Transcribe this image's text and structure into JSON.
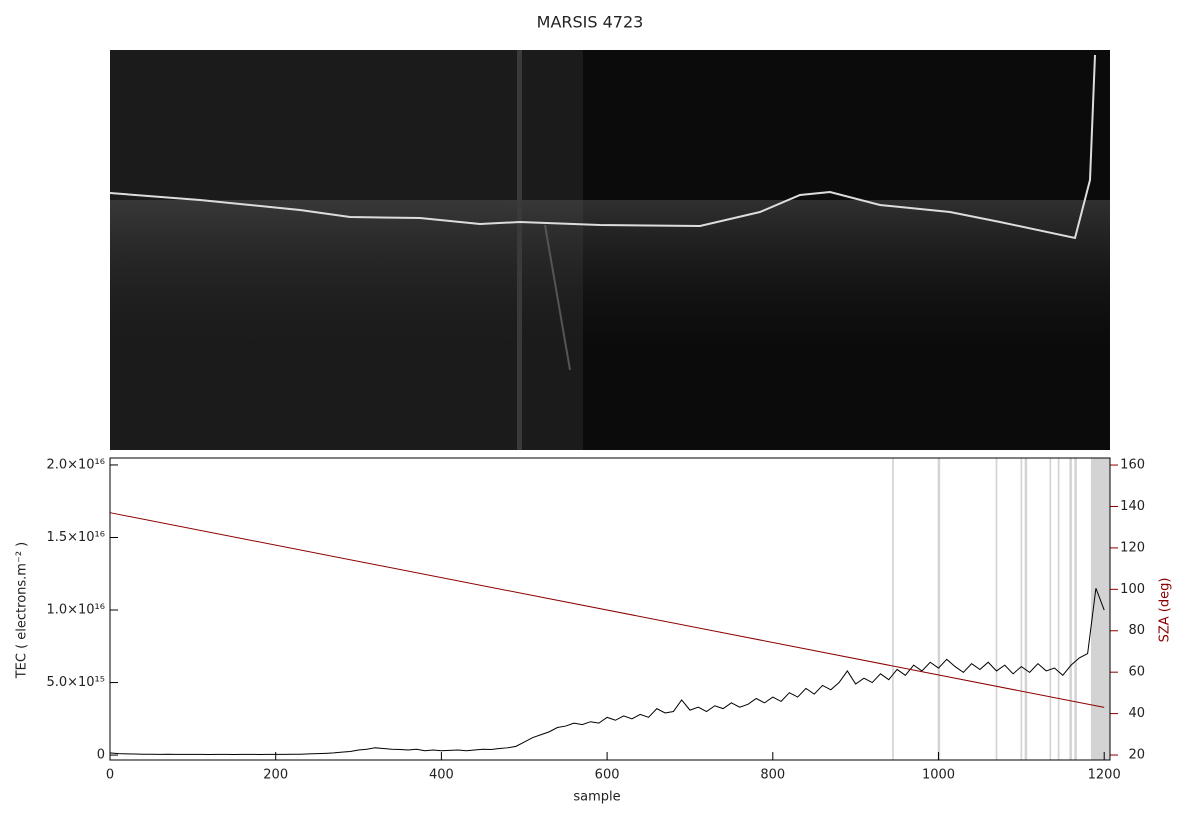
{
  "chart_data": {
    "type": "line",
    "title": "MARSIS 4723",
    "xlabel": "sample",
    "ylabel": "TEC ( electrons.m⁻² )",
    "y2label": "SZA (deg)",
    "xlim": [
      0,
      1207
    ],
    "xticks": [
      0,
      200,
      400,
      600,
      800,
      1000,
      1200
    ],
    "ylim": [
      -340000000000000.0,
      2.048e+16
    ],
    "yticks": [
      0,
      {
        "value": 5000000000000000.0,
        "label": "5.0×10¹⁵"
      },
      {
        "value": 1e+16,
        "label": "1.0×10¹⁶"
      },
      {
        "value": 1.5e+16,
        "label": "1.5×10¹⁶"
      },
      {
        "value": 2e+16,
        "label": "2.0×10¹⁶"
      }
    ],
    "y2lim": [
      17.6,
      163.4
    ],
    "y2ticks": [
      20,
      40,
      60,
      80,
      100,
      120,
      140,
      160
    ],
    "gray_bands": [
      [
        944,
        946
      ],
      [
        999,
        1002
      ],
      [
        1069,
        1071
      ],
      [
        1099,
        1101
      ],
      [
        1104,
        1107
      ],
      [
        1134,
        1136
      ],
      [
        1144,
        1146
      ],
      [
        1158,
        1161
      ],
      [
        1164,
        1167
      ],
      [
        1184,
        1207
      ]
    ],
    "band_color": "#d3d3d3",
    "series": [
      {
        "color": "#000000",
        "x": [
          0,
          10,
          20,
          30,
          40,
          50,
          60,
          70,
          80,
          90,
          100,
          110,
          120,
          130,
          140,
          150,
          160,
          170,
          180,
          190,
          200,
          210,
          220,
          230,
          240,
          250,
          260,
          270,
          280,
          290,
          300,
          310,
          320,
          330,
          340,
          350,
          360,
          370,
          380,
          390,
          400,
          410,
          420,
          430,
          440,
          450,
          460,
          470,
          480,
          490,
          500,
          510,
          520,
          530,
          540,
          550,
          560,
          570,
          580,
          590,
          600,
          610,
          620,
          630,
          640,
          650,
          660,
          670,
          680,
          690,
          700,
          710,
          720,
          730,
          740,
          750,
          760,
          770,
          780,
          790,
          800,
          810,
          820,
          830,
          840,
          850,
          860,
          870,
          880,
          890,
          900,
          910,
          920,
          930,
          940,
          950,
          960,
          970,
          980,
          990,
          1000,
          1010,
          1020,
          1030,
          1040,
          1050,
          1060,
          1070,
          1080,
          1090,
          1100,
          1110,
          1120,
          1130,
          1140,
          1150,
          1160,
          1170,
          1180,
          1190,
          1200
        ],
        "values": [
          150000000000000.0,
          100000000000000.0,
          80000000000000.0,
          70000000000000.0,
          60000000000000.0,
          60000000000000.0,
          50000000000000.0,
          60000000000000.0,
          50000000000000.0,
          50000000000000.0,
          50000000000000.0,
          50000000000000.0,
          40000000000000.0,
          50000000000000.0,
          50000000000000.0,
          40000000000000.0,
          50000000000000.0,
          50000000000000.0,
          40000000000000.0,
          50000000000000.0,
          50000000000000.0,
          50000000000000.0,
          60000000000000.0,
          60000000000000.0,
          80000000000000.0,
          100000000000000.0,
          120000000000000.0,
          150000000000000.0,
          200000000000000.0,
          250000000000000.0,
          350000000000000.0,
          400000000000000.0,
          500000000000000.0,
          450000000000000.0,
          400000000000000.0,
          380000000000000.0,
          350000000000000.0,
          400000000000000.0,
          300000000000000.0,
          350000000000000.0,
          300000000000000.0,
          320000000000000.0,
          350000000000000.0,
          300000000000000.0,
          350000000000000.0,
          400000000000000.0,
          380000000000000.0,
          450000000000000.0,
          500000000000000.0,
          600000000000000.0,
          900000000000000.0,
          1200000000000000.0,
          1400000000000000.0,
          1600000000000000.0,
          1900000000000000.0,
          2000000000000000.0,
          2200000000000000.0,
          2100000000000000.0,
          2300000000000000.0,
          2200000000000000.0,
          2600000000000000.0,
          2400000000000000.0,
          2700000000000000.0,
          2500000000000000.0,
          2800000000000000.0,
          2600000000000000.0,
          3200000000000000.0,
          2900000000000000.0,
          3000000000000000.0,
          3800000000000000.0,
          3100000000000000.0,
          3300000000000000.0,
          3000000000000000.0,
          3400000000000000.0,
          3200000000000000.0,
          3600000000000000.0,
          3300000000000000.0,
          3500000000000000.0,
          3900000000000000.0,
          3600000000000000.0,
          4000000000000000.0,
          3700000000000000.0,
          4300000000000000.0,
          4000000000000000.0,
          4600000000000000.0,
          4200000000000000.0,
          4800000000000000.0,
          4500000000000000.0,
          5000000000000000.0,
          5800000000000000.0,
          4900000000000000.0,
          5300000000000000.0,
          5000000000000000.0,
          5600000000000000.0,
          5200000000000000.0,
          5900000000000000.0,
          5500000000000000.0,
          6200000000000000.0,
          5800000000000000.0,
          6400000000000000.0,
          6000000000000000.0,
          6600000000000000.0,
          6100000000000000.0,
          5700000000000000.0,
          6300000000000000.0,
          5900000000000000.0,
          6400000000000000.0,
          5800000000000000.0,
          6200000000000000.0,
          5600000000000000.0,
          6100000000000000.0,
          5700000000000000.0,
          6300000000000000.0,
          5800000000000000.0,
          6000000000000000.0,
          5500000000000000.0,
          6200000000000000.0,
          6700000000000000.0,
          7000000000000000.0,
          1.15e+16,
          1e+16
        ]
      },
      {
        "color": "#8b0000",
        "axis": "y2",
        "x": [
          0,
          1200
        ],
        "values": [
          137,
          43
        ]
      }
    ]
  }
}
